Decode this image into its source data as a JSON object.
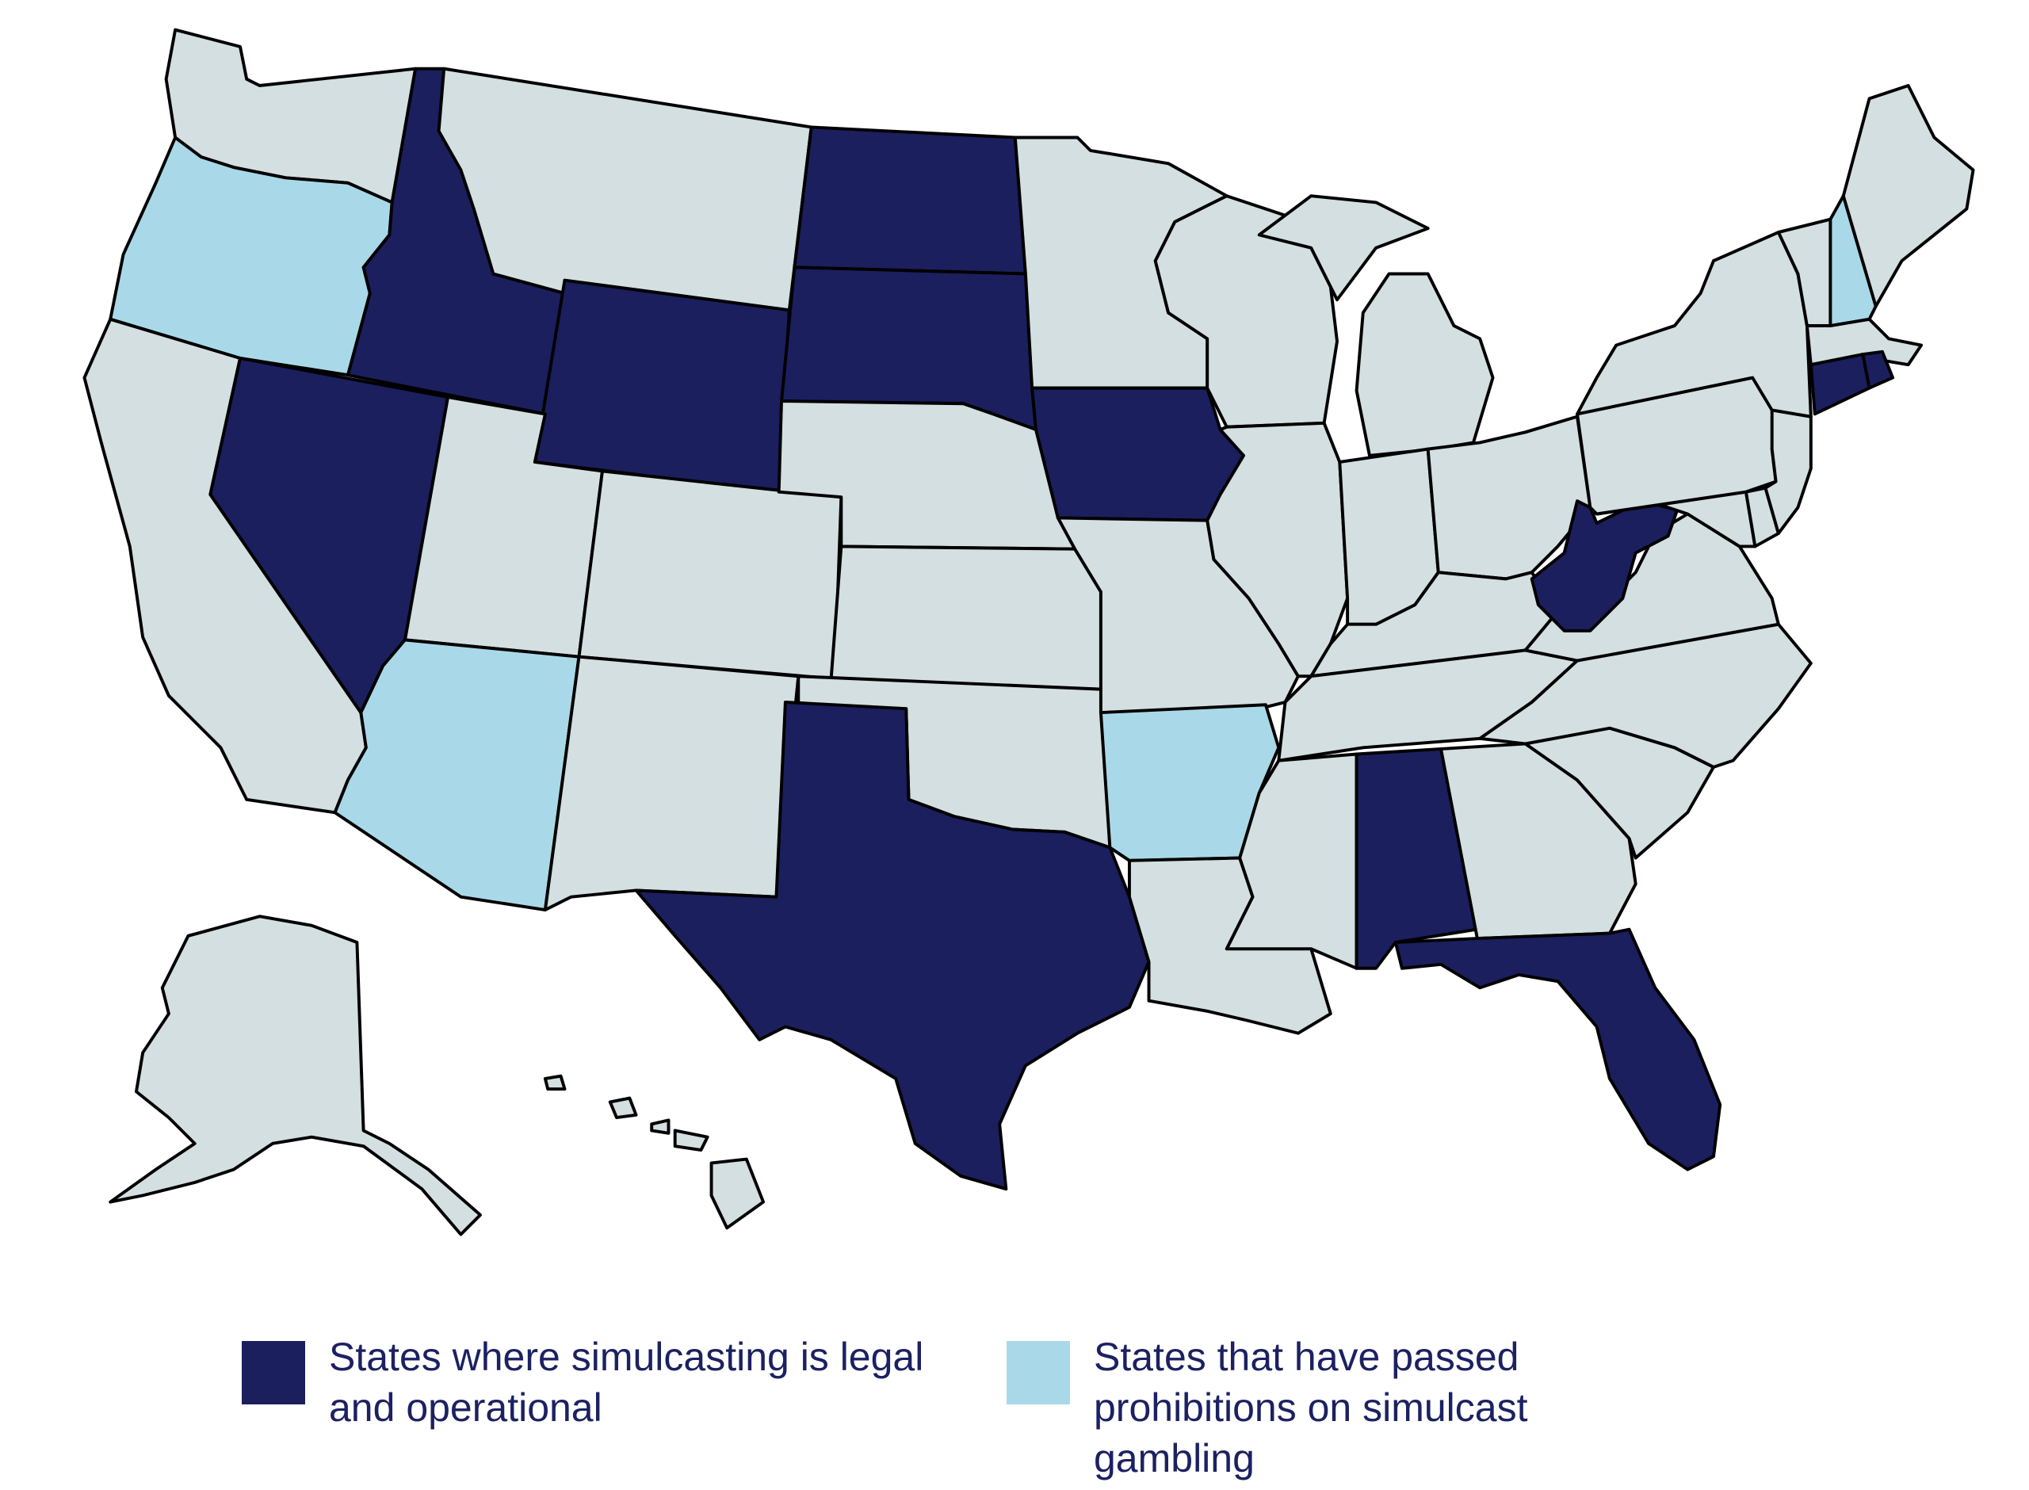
{
  "colors": {
    "legal": "#1b1f5e",
    "prohibited": "#a9d9e8",
    "neutral": "#d3dfe0",
    "outline": "#000000",
    "legend_text": "#1b2161"
  },
  "states": [
    {
      "code": "WA",
      "status": "neutral"
    },
    {
      "code": "OR",
      "status": "prohibited"
    },
    {
      "code": "CA",
      "status": "neutral"
    },
    {
      "code": "ID",
      "status": "legal"
    },
    {
      "code": "NV",
      "status": "legal"
    },
    {
      "code": "MT",
      "status": "neutral"
    },
    {
      "code": "WY",
      "status": "legal"
    },
    {
      "code": "UT",
      "status": "neutral"
    },
    {
      "code": "AZ",
      "status": "prohibited"
    },
    {
      "code": "CO",
      "status": "neutral"
    },
    {
      "code": "NM",
      "status": "neutral"
    },
    {
      "code": "ND",
      "status": "legal"
    },
    {
      "code": "SD",
      "status": "legal"
    },
    {
      "code": "NE",
      "status": "neutral"
    },
    {
      "code": "KS",
      "status": "neutral"
    },
    {
      "code": "OK",
      "status": "neutral"
    },
    {
      "code": "TX",
      "status": "legal"
    },
    {
      "code": "MN",
      "status": "neutral"
    },
    {
      "code": "IA",
      "status": "legal"
    },
    {
      "code": "MO",
      "status": "neutral"
    },
    {
      "code": "AR",
      "status": "prohibited"
    },
    {
      "code": "LA",
      "status": "neutral"
    },
    {
      "code": "WI",
      "status": "neutral"
    },
    {
      "code": "IL",
      "status": "neutral"
    },
    {
      "code": "MI",
      "status": "neutral"
    },
    {
      "code": "IN",
      "status": "neutral"
    },
    {
      "code": "OH",
      "status": "neutral"
    },
    {
      "code": "KY",
      "status": "neutral"
    },
    {
      "code": "TN",
      "status": "neutral"
    },
    {
      "code": "MS",
      "status": "neutral"
    },
    {
      "code": "AL",
      "status": "legal"
    },
    {
      "code": "GA",
      "status": "neutral"
    },
    {
      "code": "FL",
      "status": "legal"
    },
    {
      "code": "SC",
      "status": "neutral"
    },
    {
      "code": "NC",
      "status": "neutral"
    },
    {
      "code": "VA",
      "status": "neutral"
    },
    {
      "code": "WV",
      "status": "legal"
    },
    {
      "code": "MD",
      "status": "neutral"
    },
    {
      "code": "DE",
      "status": "neutral"
    },
    {
      "code": "PA",
      "status": "neutral"
    },
    {
      "code": "NJ",
      "status": "neutral"
    },
    {
      "code": "NY",
      "status": "neutral"
    },
    {
      "code": "CT",
      "status": "legal"
    },
    {
      "code": "RI",
      "status": "legal"
    },
    {
      "code": "MA",
      "status": "neutral"
    },
    {
      "code": "VT",
      "status": "neutral"
    },
    {
      "code": "NH",
      "status": "prohibited"
    },
    {
      "code": "ME",
      "status": "neutral"
    },
    {
      "code": "AK",
      "status": "neutral"
    },
    {
      "code": "HI",
      "status": "neutral"
    }
  ],
  "legend": {
    "legal": {
      "label": "States where simulcasting is legal and operational"
    },
    "prohibited": {
      "label": "States that have passed prohibitions on simulcast gambling"
    }
  }
}
